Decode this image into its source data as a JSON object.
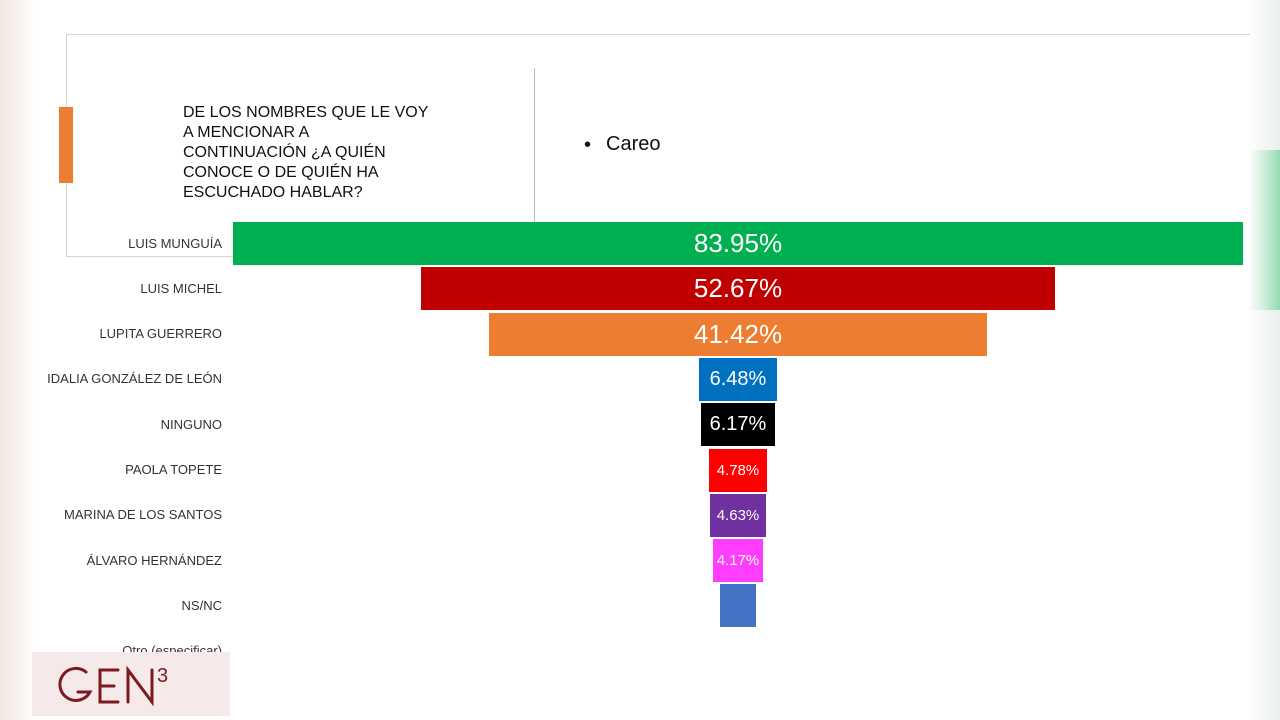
{
  "header": {
    "question": "DE LOS NOMBRES QUE LE VOY A MENCIONAR A CONTINUACIÓN ¿A QUIÉN CONOCE O DE QUIÉN HA ESCUCHADO HABLAR?",
    "bullet": "Careo"
  },
  "chart_data": {
    "type": "bar",
    "orientation": "horizontal-funnel",
    "categories": [
      "LUIS MUNGUÍA",
      "LUIS MICHEL",
      "LUPITA GUERRERO",
      "IDALIA GONZÁLEZ DE LEÓN",
      "NINGUNO",
      "PAOLA TOPETE",
      "MARINA DE LOS SANTOS",
      "ÁLVARO HERNÁNDEZ",
      "NS/NC",
      "Otro (especificar)"
    ],
    "values": [
      83.95,
      52.67,
      41.42,
      6.48,
      6.17,
      4.78,
      4.63,
      4.17,
      3.0,
      0
    ],
    "data_labels": [
      "83.95%",
      "52.67%",
      "41.42%",
      "6.48%",
      "6.17%",
      "4.78%",
      "4.63%",
      "4.17%",
      "",
      ""
    ],
    "colors": [
      "#00b050",
      "#c00000",
      "#ed7d31",
      "#0070c0",
      "#000000",
      "#ff0000",
      "#7030a0",
      "#ff3dff",
      "#4472c4",
      "#ffffff"
    ],
    "title": "",
    "xlabel": "",
    "ylabel": ""
  },
  "logo": {
    "text": "GEN",
    "superscript": "3",
    "color": "#7b1a1f"
  }
}
